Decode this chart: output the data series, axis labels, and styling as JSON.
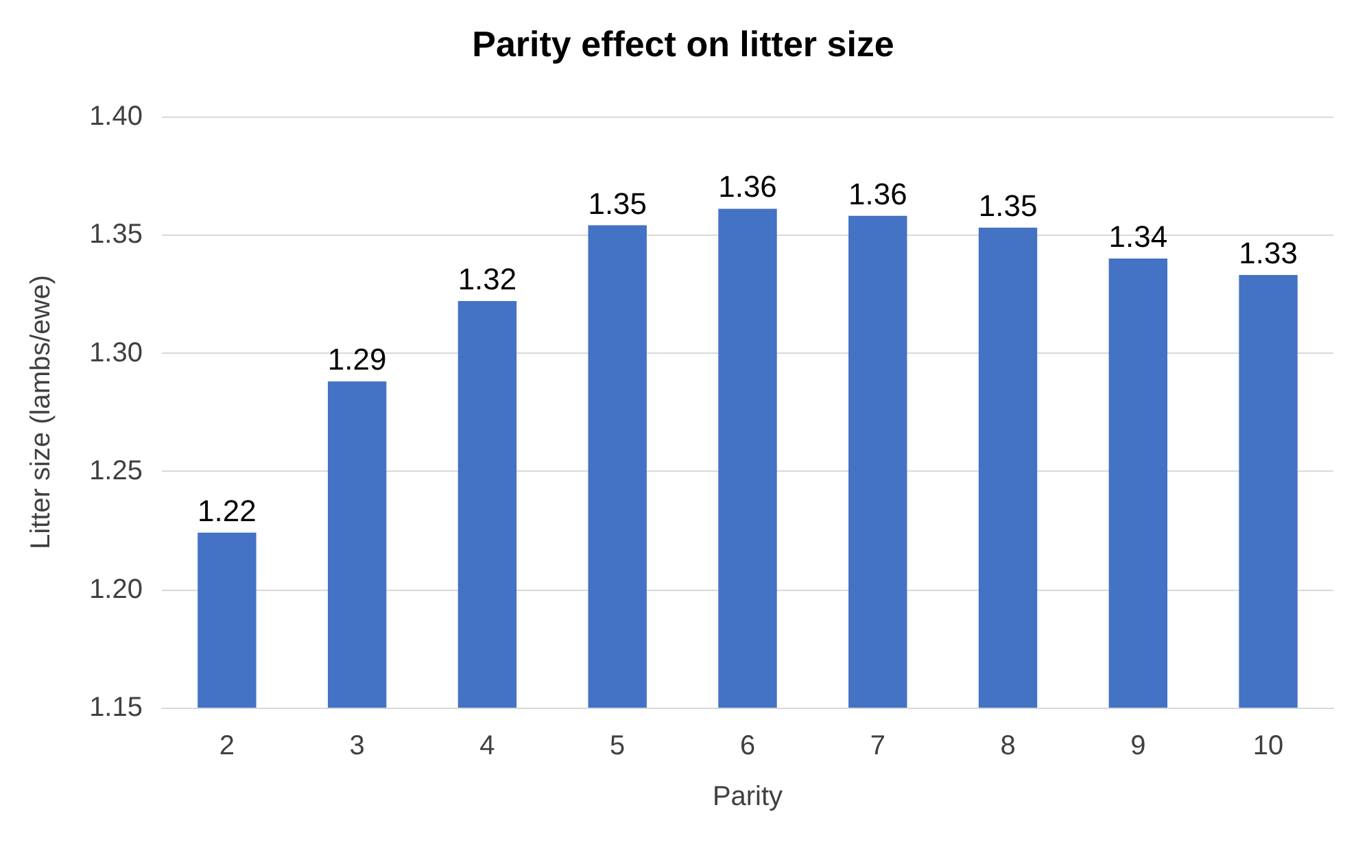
{
  "chart_data": {
    "type": "bar",
    "title": "Parity effect on litter size",
    "xlabel": "Parity",
    "ylabel": "Litter size (lambs/ewe)",
    "categories": [
      "2",
      "3",
      "4",
      "5",
      "6",
      "7",
      "8",
      "9",
      "10"
    ],
    "values": [
      1.224,
      1.288,
      1.322,
      1.354,
      1.361,
      1.358,
      1.353,
      1.34,
      1.333
    ],
    "value_labels": [
      "1.22",
      "1.29",
      "1.32",
      "1.35",
      "1.36",
      "1.36",
      "1.35",
      "1.34",
      "1.33"
    ],
    "color": "#4472c4",
    "ylim": [
      1.15,
      1.4
    ],
    "yticks": [
      "1.15",
      "1.20",
      "1.25",
      "1.30",
      "1.35",
      "1.40"
    ],
    "grid": "y"
  }
}
